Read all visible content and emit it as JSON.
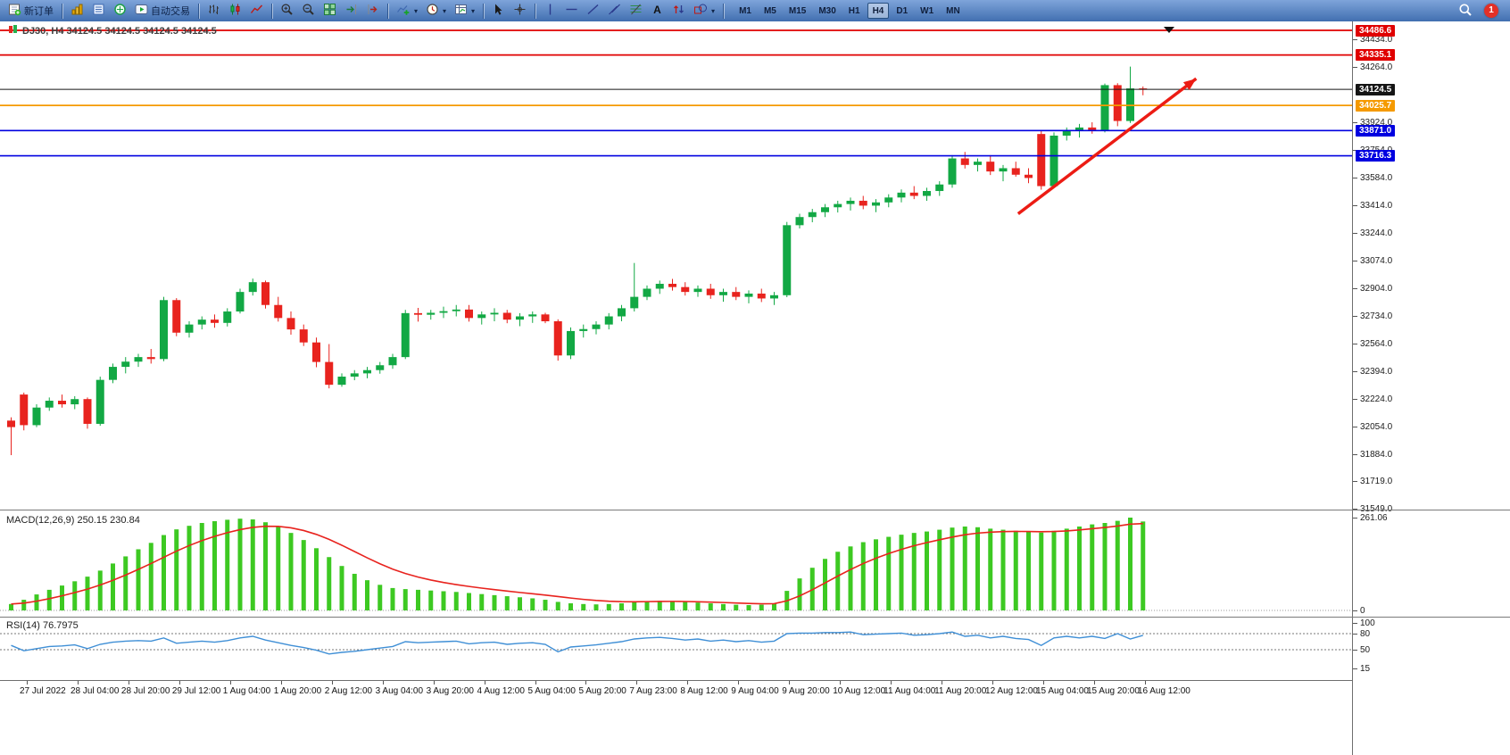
{
  "toolbar": {
    "new_order_label": "新订单",
    "auto_trading_label": "自动交易",
    "timeframes": [
      "M1",
      "M5",
      "M15",
      "M30",
      "H1",
      "H4",
      "D1",
      "W1",
      "MN"
    ],
    "active_timeframe": "H4",
    "notification_count": "1"
  },
  "chart": {
    "symbol_label": "DJ30, H4 34124.5 34124.5 34124.5 34124.5",
    "macd_label": "MACD(12,26,9) 250.15 230.84",
    "rsi_label": "RSI(14) 76.7975"
  },
  "chart_data": {
    "type": "candlestick",
    "symbol": "DJ30",
    "timeframe": "H4",
    "ohlc_display": [
      "34124.5",
      "34124.5",
      "34124.5",
      "34124.5"
    ],
    "ylim": [
      31549.0,
      34486.6
    ],
    "y_ticks": [
      34434.0,
      34264.0,
      33924.0,
      33754.0,
      33584.0,
      33414.0,
      33244.0,
      33074.0,
      32904.0,
      32734.0,
      32564.0,
      32394.0,
      32224.0,
      32054.0,
      31884.0,
      31719.0,
      31549.0
    ],
    "levels": [
      {
        "price": 34486.6,
        "color": "#e00000",
        "label": "34486.6"
      },
      {
        "price": 34335.1,
        "color": "#e00000",
        "label": "34335.1"
      },
      {
        "price": 34124.5,
        "color": "#151515",
        "label": "34124.5",
        "type": "current"
      },
      {
        "price": 34025.7,
        "color": "#f59a00",
        "label": "34025.7"
      },
      {
        "price": 33871.0,
        "color": "#0000e0",
        "label": "33871.0"
      },
      {
        "price": 33716.3,
        "color": "#0000e0",
        "label": "33716.3"
      }
    ],
    "x_labels": [
      "27 Jul 2022",
      "28 Jul 04:00",
      "28 Jul 20:00",
      "29 Jul 12:00",
      "1 Aug 04:00",
      "1 Aug 20:00",
      "2 Aug 12:00",
      "3 Aug 04:00",
      "3 Aug 20:00",
      "4 Aug 12:00",
      "5 Aug 04:00",
      "5 Aug 20:00",
      "7 Aug 23:00",
      "8 Aug 12:00",
      "9 Aug 04:00",
      "9 Aug 20:00",
      "10 Aug 12:00",
      "11 Aug 04:00",
      "11 Aug 20:00",
      "12 Aug 12:00",
      "15 Aug 04:00",
      "15 Aug 20:00",
      "16 Aug 12:00"
    ],
    "up_color": "#12a844",
    "down_color": "#e8231e",
    "candles": [
      [
        32090,
        32110,
        31878,
        32050
      ],
      [
        32250,
        32262,
        32030,
        32062
      ],
      [
        32062,
        32190,
        32050,
        32170
      ],
      [
        32170,
        32232,
        32150,
        32212
      ],
      [
        32212,
        32250,
        32170,
        32190
      ],
      [
        32190,
        32240,
        32160,
        32222
      ],
      [
        32222,
        32232,
        32040,
        32070
      ],
      [
        32070,
        32360,
        32058,
        32340
      ],
      [
        32340,
        32440,
        32320,
        32420
      ],
      [
        32420,
        32480,
        32380,
        32452
      ],
      [
        32452,
        32500,
        32420,
        32480
      ],
      [
        32480,
        32530,
        32440,
        32468
      ],
      [
        32468,
        32850,
        32455,
        32830
      ],
      [
        32830,
        32842,
        32608,
        32630
      ],
      [
        32630,
        32700,
        32600,
        32680
      ],
      [
        32680,
        32730,
        32650,
        32710
      ],
      [
        32710,
        32742,
        32660,
        32690
      ],
      [
        32690,
        32780,
        32668,
        32760
      ],
      [
        32760,
        32900,
        32748,
        32880
      ],
      [
        32880,
        32962,
        32858,
        32940
      ],
      [
        32940,
        32950,
        32778,
        32800
      ],
      [
        32800,
        32850,
        32698,
        32720
      ],
      [
        32720,
        32760,
        32618,
        32650
      ],
      [
        32650,
        32680,
        32548,
        32570
      ],
      [
        32570,
        32600,
        32418,
        32450
      ],
      [
        32450,
        32560,
        32288,
        32310
      ],
      [
        32310,
        32380,
        32298,
        32360
      ],
      [
        32360,
        32400,
        32338,
        32380
      ],
      [
        32380,
        32420,
        32350,
        32400
      ],
      [
        32400,
        32450,
        32378,
        32430
      ],
      [
        32430,
        32500,
        32408,
        32480
      ],
      [
        32480,
        32770,
        32468,
        32750
      ],
      [
        32750,
        32782,
        32698,
        32740
      ],
      [
        32740,
        32770,
        32710,
        32752
      ],
      [
        32752,
        32790,
        32720,
        32762
      ],
      [
        32762,
        32800,
        32730,
        32772
      ],
      [
        32772,
        32800,
        32698,
        32720
      ],
      [
        32720,
        32760,
        32680,
        32742
      ],
      [
        32742,
        32780,
        32700,
        32752
      ],
      [
        32752,
        32770,
        32688,
        32710
      ],
      [
        32710,
        32750,
        32670,
        32730
      ],
      [
        32730,
        32760,
        32690,
        32742
      ],
      [
        32742,
        32752,
        32688,
        32700
      ],
      [
        32700,
        32712,
        32458,
        32490
      ],
      [
        32490,
        32662,
        32468,
        32640
      ],
      [
        32640,
        32680,
        32600,
        32652
      ],
      [
        32652,
        32700,
        32620,
        32680
      ],
      [
        32680,
        32750,
        32650,
        32730
      ],
      [
        32730,
        32800,
        32700,
        32780
      ],
      [
        32780,
        33058,
        32760,
        32850
      ],
      [
        32850,
        32920,
        32830,
        32900
      ],
      [
        32900,
        32950,
        32868,
        32930
      ],
      [
        32930,
        32960,
        32888,
        32910
      ],
      [
        32910,
        32940,
        32858,
        32880
      ],
      [
        32880,
        32920,
        32850,
        32900
      ],
      [
        32900,
        32930,
        32838,
        32860
      ],
      [
        32860,
        32900,
        32820,
        32880
      ],
      [
        32880,
        32910,
        32830,
        32850
      ],
      [
        32850,
        32890,
        32810,
        32870
      ],
      [
        32870,
        32900,
        32818,
        32840
      ],
      [
        32840,
        32880,
        32800,
        32860
      ],
      [
        32860,
        33310,
        32848,
        33290
      ],
      [
        33290,
        33360,
        33270,
        33340
      ],
      [
        33340,
        33390,
        33308,
        33370
      ],
      [
        33370,
        33420,
        33340,
        33400
      ],
      [
        33400,
        33440,
        33368,
        33420
      ],
      [
        33420,
        33460,
        33380,
        33440
      ],
      [
        33440,
        33470,
        33388,
        33410
      ],
      [
        33410,
        33450,
        33370,
        33430
      ],
      [
        33430,
        33480,
        33400,
        33460
      ],
      [
        33460,
        33510,
        33430,
        33490
      ],
      [
        33490,
        33530,
        33450,
        33470
      ],
      [
        33470,
        33520,
        33440,
        33500
      ],
      [
        33500,
        33560,
        33470,
        33540
      ],
      [
        33540,
        33720,
        33520,
        33700
      ],
      [
        33700,
        33740,
        33638,
        33660
      ],
      [
        33660,
        33700,
        33620,
        33680
      ],
      [
        33680,
        33720,
        33598,
        33620
      ],
      [
        33620,
        33660,
        33560,
        33640
      ],
      [
        33640,
        33680,
        33588,
        33600
      ],
      [
        33600,
        33640,
        33548,
        33580
      ],
      [
        33850,
        33872,
        33508,
        33530
      ],
      [
        33530,
        33860,
        33518,
        33840
      ],
      [
        33840,
        33890,
        33810,
        33868
      ],
      [
        33868,
        33912,
        33828,
        33890
      ],
      [
        33890,
        33922,
        33852,
        33872
      ],
      [
        33872,
        34160,
        33860,
        34150
      ],
      [
        34150,
        34162,
        33898,
        33930
      ],
      [
        33930,
        34264,
        33918,
        34130
      ],
      [
        34130,
        34142,
        34088,
        34124.5
      ]
    ],
    "macd": {
      "label": "MACD(12,26,9)",
      "macd_value": 250.15,
      "signal_value": 230.84,
      "scale_max": 261.06,
      "scale_min": 0,
      "bar_color": "#3dc922",
      "signal_color": "#e8231e",
      "bars": [
        18,
        30,
        45,
        58,
        70,
        82,
        95,
        112,
        132,
        152,
        172,
        190,
        212,
        228,
        238,
        246,
        251,
        255,
        258,
        256,
        248,
        235,
        218,
        198,
        175,
        150,
        125,
        103,
        85,
        72,
        63,
        60,
        58,
        56,
        54,
        52,
        49,
        46,
        43,
        40,
        37,
        34,
        30,
        24,
        20,
        18,
        17,
        18,
        20,
        24,
        26,
        27,
        26,
        24,
        22,
        20,
        18,
        16,
        15,
        16,
        20,
        55,
        90,
        120,
        145,
        165,
        180,
        192,
        200,
        207,
        213,
        218,
        222,
        227,
        233,
        236,
        234,
        230,
        227,
        224,
        221,
        219,
        224,
        230,
        236,
        242,
        246,
        252,
        261.06,
        250.15
      ]
    },
    "rsi": {
      "label": "RSI(14)",
      "value": 76.7975,
      "levels": [
        100,
        80,
        50,
        15
      ],
      "dashed_levels": [
        80,
        50
      ],
      "line_color": "#3f8fd6",
      "values": [
        58,
        48,
        52,
        56,
        57,
        59,
        52,
        60,
        64,
        66,
        67,
        66,
        72,
        62,
        64,
        66,
        64,
        67,
        72,
        75,
        68,
        63,
        58,
        54,
        49,
        42,
        45,
        47,
        50,
        53,
        56,
        65,
        63,
        64,
        65,
        66,
        61,
        63,
        64,
        60,
        62,
        63,
        60,
        46,
        55,
        57,
        59,
        62,
        65,
        70,
        72,
        73,
        71,
        68,
        70,
        66,
        68,
        65,
        67,
        64,
        66,
        80,
        81,
        81,
        82,
        82,
        83,
        78,
        79,
        80,
        81,
        77,
        78,
        80,
        83,
        75,
        77,
        72,
        75,
        71,
        69,
        58,
        72,
        75,
        72,
        75,
        71,
        80,
        70,
        76.8
      ]
    },
    "annotation_arrow": {
      "color": "#ec1c14",
      "x1_index": 79.5,
      "y1_price": 33360,
      "x2_index": 93.5,
      "y2_price": 34190
    }
  }
}
